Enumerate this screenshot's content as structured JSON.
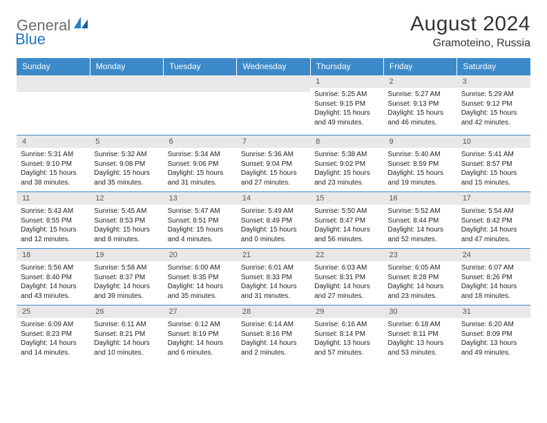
{
  "brand": {
    "general": "General",
    "blue": "Blue"
  },
  "title": "August 2024",
  "location": "Gramoteino, Russia",
  "colors": {
    "header_bg": "#3b89c9",
    "header_text": "#ffffff",
    "daynum_bg": "#e8e8e8",
    "border": "#3b89c9",
    "logo_gray": "#6b6b6b",
    "logo_blue": "#2176bd"
  },
  "day_names": [
    "Sunday",
    "Monday",
    "Tuesday",
    "Wednesday",
    "Thursday",
    "Friday",
    "Saturday"
  ],
  "weeks": [
    [
      null,
      null,
      null,
      null,
      {
        "n": "1",
        "sr": "Sunrise: 5:25 AM",
        "ss": "Sunset: 9:15 PM",
        "dl": "Daylight: 15 hours and 49 minutes."
      },
      {
        "n": "2",
        "sr": "Sunrise: 5:27 AM",
        "ss": "Sunset: 9:13 PM",
        "dl": "Daylight: 15 hours and 46 minutes."
      },
      {
        "n": "3",
        "sr": "Sunrise: 5:29 AM",
        "ss": "Sunset: 9:12 PM",
        "dl": "Daylight: 15 hours and 42 minutes."
      }
    ],
    [
      {
        "n": "4",
        "sr": "Sunrise: 5:31 AM",
        "ss": "Sunset: 9:10 PM",
        "dl": "Daylight: 15 hours and 38 minutes."
      },
      {
        "n": "5",
        "sr": "Sunrise: 5:32 AM",
        "ss": "Sunset: 9:08 PM",
        "dl": "Daylight: 15 hours and 35 minutes."
      },
      {
        "n": "6",
        "sr": "Sunrise: 5:34 AM",
        "ss": "Sunset: 9:06 PM",
        "dl": "Daylight: 15 hours and 31 minutes."
      },
      {
        "n": "7",
        "sr": "Sunrise: 5:36 AM",
        "ss": "Sunset: 9:04 PM",
        "dl": "Daylight: 15 hours and 27 minutes."
      },
      {
        "n": "8",
        "sr": "Sunrise: 5:38 AM",
        "ss": "Sunset: 9:02 PM",
        "dl": "Daylight: 15 hours and 23 minutes."
      },
      {
        "n": "9",
        "sr": "Sunrise: 5:40 AM",
        "ss": "Sunset: 8:59 PM",
        "dl": "Daylight: 15 hours and 19 minutes."
      },
      {
        "n": "10",
        "sr": "Sunrise: 5:41 AM",
        "ss": "Sunset: 8:57 PM",
        "dl": "Daylight: 15 hours and 15 minutes."
      }
    ],
    [
      {
        "n": "11",
        "sr": "Sunrise: 5:43 AM",
        "ss": "Sunset: 8:55 PM",
        "dl": "Daylight: 15 hours and 12 minutes."
      },
      {
        "n": "12",
        "sr": "Sunrise: 5:45 AM",
        "ss": "Sunset: 8:53 PM",
        "dl": "Daylight: 15 hours and 8 minutes."
      },
      {
        "n": "13",
        "sr": "Sunrise: 5:47 AM",
        "ss": "Sunset: 8:51 PM",
        "dl": "Daylight: 15 hours and 4 minutes."
      },
      {
        "n": "14",
        "sr": "Sunrise: 5:49 AM",
        "ss": "Sunset: 8:49 PM",
        "dl": "Daylight: 15 hours and 0 minutes."
      },
      {
        "n": "15",
        "sr": "Sunrise: 5:50 AM",
        "ss": "Sunset: 8:47 PM",
        "dl": "Daylight: 14 hours and 56 minutes."
      },
      {
        "n": "16",
        "sr": "Sunrise: 5:52 AM",
        "ss": "Sunset: 8:44 PM",
        "dl": "Daylight: 14 hours and 52 minutes."
      },
      {
        "n": "17",
        "sr": "Sunrise: 5:54 AM",
        "ss": "Sunset: 8:42 PM",
        "dl": "Daylight: 14 hours and 47 minutes."
      }
    ],
    [
      {
        "n": "18",
        "sr": "Sunrise: 5:56 AM",
        "ss": "Sunset: 8:40 PM",
        "dl": "Daylight: 14 hours and 43 minutes."
      },
      {
        "n": "19",
        "sr": "Sunrise: 5:58 AM",
        "ss": "Sunset: 8:37 PM",
        "dl": "Daylight: 14 hours and 39 minutes."
      },
      {
        "n": "20",
        "sr": "Sunrise: 6:00 AM",
        "ss": "Sunset: 8:35 PM",
        "dl": "Daylight: 14 hours and 35 minutes."
      },
      {
        "n": "21",
        "sr": "Sunrise: 6:01 AM",
        "ss": "Sunset: 8:33 PM",
        "dl": "Daylight: 14 hours and 31 minutes."
      },
      {
        "n": "22",
        "sr": "Sunrise: 6:03 AM",
        "ss": "Sunset: 8:31 PM",
        "dl": "Daylight: 14 hours and 27 minutes."
      },
      {
        "n": "23",
        "sr": "Sunrise: 6:05 AM",
        "ss": "Sunset: 8:28 PM",
        "dl": "Daylight: 14 hours and 23 minutes."
      },
      {
        "n": "24",
        "sr": "Sunrise: 6:07 AM",
        "ss": "Sunset: 8:26 PM",
        "dl": "Daylight: 14 hours and 18 minutes."
      }
    ],
    [
      {
        "n": "25",
        "sr": "Sunrise: 6:09 AM",
        "ss": "Sunset: 8:23 PM",
        "dl": "Daylight: 14 hours and 14 minutes."
      },
      {
        "n": "26",
        "sr": "Sunrise: 6:11 AM",
        "ss": "Sunset: 8:21 PM",
        "dl": "Daylight: 14 hours and 10 minutes."
      },
      {
        "n": "27",
        "sr": "Sunrise: 6:12 AM",
        "ss": "Sunset: 8:19 PM",
        "dl": "Daylight: 14 hours and 6 minutes."
      },
      {
        "n": "28",
        "sr": "Sunrise: 6:14 AM",
        "ss": "Sunset: 8:16 PM",
        "dl": "Daylight: 14 hours and 2 minutes."
      },
      {
        "n": "29",
        "sr": "Sunrise: 6:16 AM",
        "ss": "Sunset: 8:14 PM",
        "dl": "Daylight: 13 hours and 57 minutes."
      },
      {
        "n": "30",
        "sr": "Sunrise: 6:18 AM",
        "ss": "Sunset: 8:11 PM",
        "dl": "Daylight: 13 hours and 53 minutes."
      },
      {
        "n": "31",
        "sr": "Sunrise: 6:20 AM",
        "ss": "Sunset: 8:09 PM",
        "dl": "Daylight: 13 hours and 49 minutes."
      }
    ]
  ]
}
